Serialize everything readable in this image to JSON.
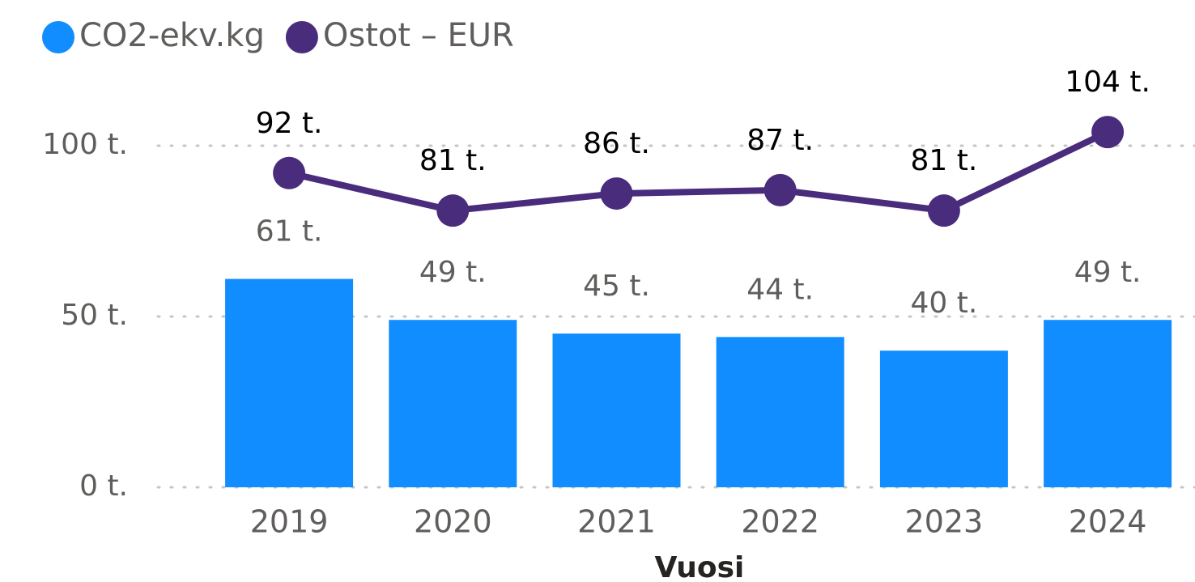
{
  "chart_data": {
    "type": "combo",
    "x_label": "Vuosi",
    "categories": [
      "2019",
      "2020",
      "2021",
      "2022",
      "2023",
      "2024"
    ],
    "series": [
      {
        "name": "CO2-ekv.kg",
        "type": "bar",
        "color": "#118dff",
        "values": [
          61000,
          49000,
          45000,
          44000,
          40000,
          49000
        ],
        "value_labels": [
          "61 t.",
          "49 t.",
          "45 t.",
          "44 t.",
          "40 t.",
          "49 t."
        ]
      },
      {
        "name": "Ostot – EUR",
        "type": "line",
        "color": "#4a2c7d",
        "values": [
          92000,
          81000,
          86000,
          87000,
          81000,
          104000
        ],
        "value_labels": [
          "92 t.",
          "81 t.",
          "86 t.",
          "87 t.",
          "81 t.",
          "104 t."
        ]
      }
    ],
    "ylim": [
      0,
      100000
    ],
    "yticks": [
      {
        "value": 0,
        "label": "0 t."
      },
      {
        "value": 50000,
        "label": "50 t."
      },
      {
        "value": 100000,
        "label": "100 t."
      }
    ],
    "grid": true,
    "legend": "top-left"
  }
}
